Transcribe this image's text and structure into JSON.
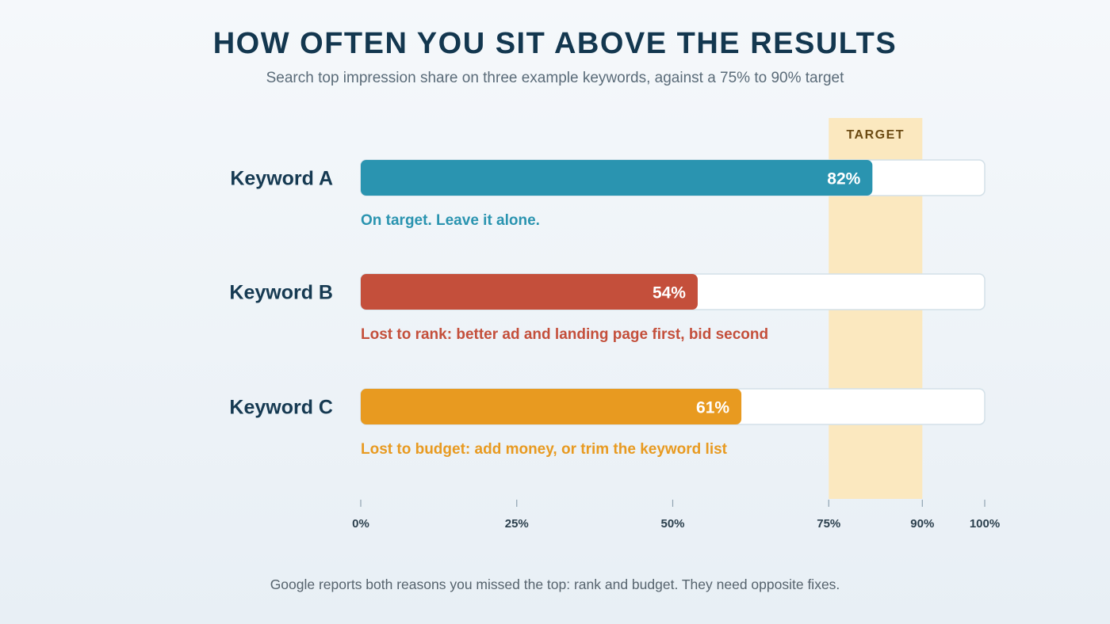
{
  "title": "HOW OFTEN YOU SIT ABOVE THE RESULTS",
  "subtitle": "Search top impression share on three example keywords, against a 75% to 90% target",
  "footnote": "Google reports both reasons you missed the top: rank and budget. They need opposite fixes.",
  "chart_data": {
    "type": "bar",
    "orientation": "horizontal",
    "categories": [
      "Keyword A",
      "Keyword B",
      "Keyword C"
    ],
    "values": [
      82,
      54,
      61
    ],
    "value_labels": [
      "82%",
      "54%",
      "61%"
    ],
    "notes": [
      "On target. Leave it alone.",
      "Lost to rank: better ad and landing page first, bid second",
      "Lost to budget: add money, or trim the keyword list"
    ],
    "colors": [
      "#2a94b0",
      "#c44f3b",
      "#e89a20"
    ],
    "xlim": [
      0,
      100
    ],
    "ticks": [
      0,
      25,
      50,
      75,
      90,
      100
    ],
    "tick_labels": [
      "0%",
      "25%",
      "50%",
      "75%",
      "90%",
      "100%"
    ],
    "target_band": {
      "from": 75,
      "to": 90,
      "label": "TARGET",
      "color": "#fbe8bf"
    },
    "track_color": "#ffffff",
    "grid": false
  }
}
